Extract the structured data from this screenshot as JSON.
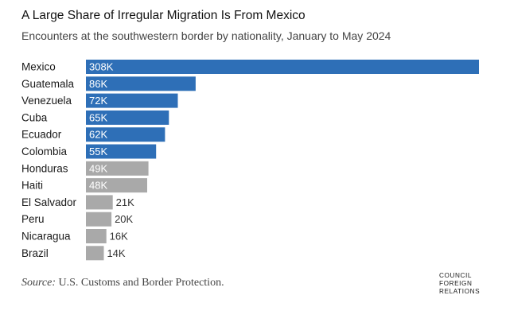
{
  "title": "A Large Share of Irregular Migration Is From Mexico",
  "subtitle": "Encounters at the southwestern border by nationality, January to May 2024",
  "source": {
    "label": "Source:",
    "text": "U.S. Customs and Border Protection."
  },
  "logo": {
    "line1": "COUNCIL",
    "line2": "FOREIGN",
    "line3": "RELATIONS"
  },
  "colors": {
    "highlight": "#2e6fb7",
    "muted": "#a9a9a9",
    "label_inside": "#ffffff",
    "label_outside": "#333333"
  },
  "chart_data": {
    "type": "bar",
    "orientation": "horizontal",
    "categories": [
      "Mexico",
      "Guatemala",
      "Venezuela",
      "Cuba",
      "Ecuador",
      "Colombia",
      "Honduras",
      "Haiti",
      "El Salvador",
      "Peru",
      "Nicaragua",
      "Brazil"
    ],
    "values": [
      308,
      86,
      72,
      65,
      62,
      55,
      49,
      48,
      21,
      20,
      16,
      14
    ],
    "value_labels": [
      "308K",
      "86K",
      "72K",
      "65K",
      "62K",
      "55K",
      "49K",
      "48K",
      "21K",
      "20K",
      "16K",
      "14K"
    ],
    "highlighted": [
      true,
      true,
      true,
      true,
      true,
      true,
      false,
      false,
      false,
      false,
      false,
      false
    ],
    "title": "A Large Share of Irregular Migration Is From Mexico",
    "xlabel": "",
    "ylabel": "",
    "xlim": [
      0,
      308
    ],
    "grid": false,
    "legend": "none"
  }
}
